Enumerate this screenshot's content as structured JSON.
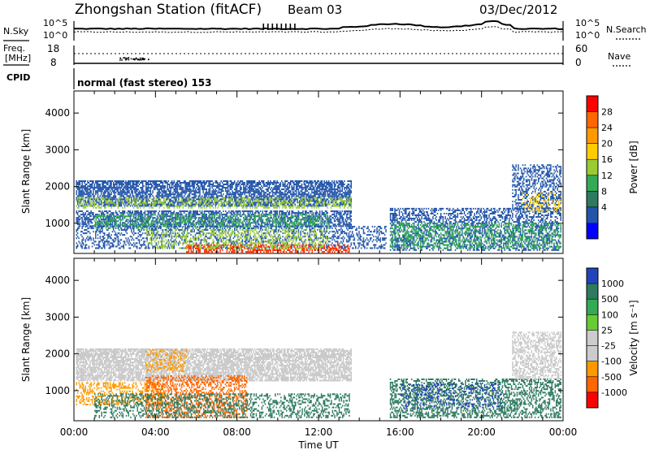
{
  "header": {
    "title": "Zhongshan Station (fitACF)",
    "beam": "Beam 03",
    "date": "03/Dec/2012"
  },
  "noise_panel": {
    "left_label": "N.Sky",
    "right_label": "N.Search",
    "ticks_top": "10^5",
    "ticks_bottom": "10^0"
  },
  "freq_panel": {
    "left_label_1": "Freq.",
    "left_label_2": "[MHz]",
    "right_label": "Nave",
    "left_ticks": [
      "18",
      "8"
    ],
    "right_ticks": [
      "60",
      "0"
    ]
  },
  "cpid": {
    "label": "CPID",
    "mode": "normal (fast stereo) 153"
  },
  "chart_data": [
    {
      "type": "heatmap",
      "name": "power",
      "ylabel": "Slant Range [km]",
      "yticks": [
        "4000",
        "3000",
        "2000",
        "1000"
      ],
      "ytick_values": [
        4000,
        3000,
        2000,
        1000
      ],
      "ylim": [
        180,
        4600
      ],
      "x_ticks_hours": [
        0,
        4,
        8,
        12,
        16,
        20,
        24
      ],
      "colorbar": {
        "label": "Power [dB]",
        "tick_labels": [
          "28",
          "24",
          "20",
          "16",
          "12",
          "8",
          "4"
        ],
        "colors": [
          "#ff0000",
          "#ff6600",
          "#ff9900",
          "#ffcc00",
          "#99cc33",
          "#33aa55",
          "#2d7a5f",
          "#2255aa",
          "#0000ff"
        ]
      },
      "scatter_bands": [
        {
          "t0": 0.1,
          "t1": 13.6,
          "r0": 1450,
          "r1": 2150,
          "color": "#2255aa",
          "density": 0.7
        },
        {
          "t0": 0.1,
          "t1": 13.6,
          "r0": 1400,
          "r1": 1700,
          "color": "#99cc33",
          "density": 0.35
        },
        {
          "t0": 0.1,
          "t1": 13.6,
          "r0": 900,
          "r1": 1350,
          "color": "#2255aa",
          "density": 0.6
        },
        {
          "t0": 1.0,
          "t1": 12.5,
          "r0": 850,
          "r1": 1250,
          "color": "#33aa55",
          "density": 0.35
        },
        {
          "t0": 0.1,
          "t1": 15.3,
          "r0": 300,
          "r1": 900,
          "color": "#2255aa",
          "density": 0.35
        },
        {
          "t0": 5.5,
          "t1": 13.5,
          "r0": 200,
          "r1": 420,
          "color": "#ff3300",
          "density": 0.5
        },
        {
          "t0": 3.5,
          "t1": 12.5,
          "r0": 300,
          "r1": 800,
          "color": "#99cc33",
          "density": 0.3
        },
        {
          "t0": 15.5,
          "t1": 23.9,
          "r0": 250,
          "r1": 1400,
          "color": "#2255aa",
          "density": 0.45
        },
        {
          "t0": 15.5,
          "t1": 23.9,
          "r0": 300,
          "r1": 1000,
          "color": "#33aa55",
          "density": 0.35
        },
        {
          "t0": 21.5,
          "t1": 23.9,
          "r0": 1300,
          "r1": 2600,
          "color": "#2255aa",
          "density": 0.45
        },
        {
          "t0": 22.0,
          "t1": 23.9,
          "r0": 1300,
          "r1": 1800,
          "color": "#ffcc00",
          "density": 0.25
        }
      ]
    },
    {
      "type": "heatmap",
      "name": "velocity",
      "ylabel": "Slant Range [km]",
      "yticks": [
        "4000",
        "3000",
        "2000",
        "1000"
      ],
      "ytick_values": [
        4000,
        3000,
        2000,
        1000
      ],
      "ylim": [
        180,
        4600
      ],
      "x_ticks_hours": [
        0,
        4,
        8,
        12,
        16,
        20,
        24
      ],
      "colorbar": {
        "label": "Velocity [m s⁻¹]",
        "tick_labels": [
          "1000",
          "500",
          "100",
          "25",
          "-25",
          "-100",
          "-500",
          "-1000"
        ],
        "colors": [
          "#2244bb",
          "#2d7a5f",
          "#33aa55",
          "#66cc33",
          "#cccccc",
          "#cccccc",
          "#ff9900",
          "#ff6600",
          "#ff0000"
        ]
      },
      "scatter_bands": [
        {
          "t0": 0.1,
          "t1": 13.6,
          "r0": 1250,
          "r1": 2150,
          "color": "#c8c8c8",
          "density": 0.75
        },
        {
          "t0": 0.1,
          "t1": 4.5,
          "r0": 600,
          "r1": 1200,
          "color": "#ff9900",
          "density": 0.4
        },
        {
          "t0": 3.5,
          "t1": 8.5,
          "r0": 250,
          "r1": 1400,
          "color": "#ff6600",
          "density": 0.4
        },
        {
          "t0": 3.5,
          "t1": 5.5,
          "r0": 1500,
          "r1": 2100,
          "color": "#ff9900",
          "density": 0.35
        },
        {
          "t0": 1.0,
          "t1": 13.5,
          "r0": 250,
          "r1": 900,
          "color": "#2d7a5f",
          "density": 0.35
        },
        {
          "t0": 15.5,
          "t1": 23.9,
          "r0": 250,
          "r1": 1300,
          "color": "#2d7a5f",
          "density": 0.45
        },
        {
          "t0": 16.0,
          "t1": 21.0,
          "r0": 500,
          "r1": 1200,
          "color": "#2244bb",
          "density": 0.2
        },
        {
          "t0": 21.5,
          "t1": 23.9,
          "r0": 1300,
          "r1": 2600,
          "color": "#c8c8c8",
          "density": 0.5
        }
      ]
    }
  ],
  "x_axis": {
    "tick_labels": [
      "00:00",
      "04:00",
      "08:00",
      "12:00",
      "16:00",
      "20:00",
      "00:00"
    ],
    "label": "Time UT"
  }
}
